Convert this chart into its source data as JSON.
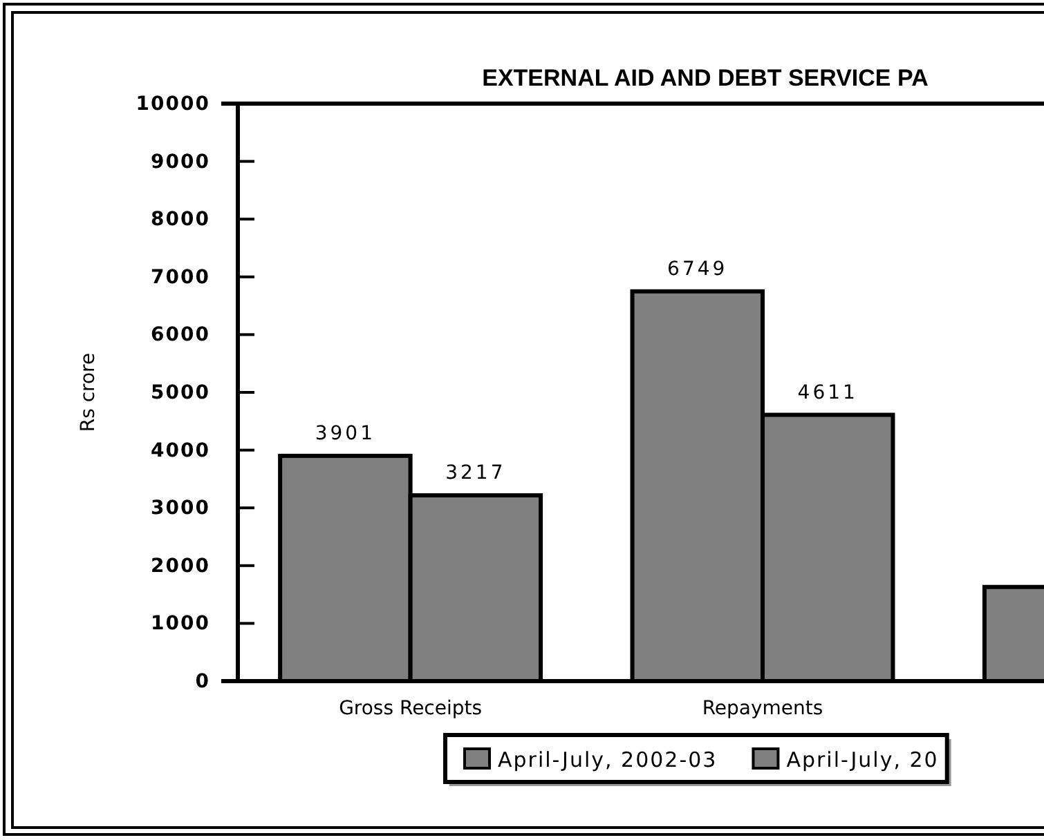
{
  "chart_data": {
    "type": "bar",
    "title": "EXTERNAL AID AND DEBT SERVICE PA",
    "ylabel": "Rs crore",
    "categories": [
      "Gross Receipts",
      "Repayments",
      null
    ],
    "series": [
      {
        "name": "April-July, 2002-03",
        "color": "#808080",
        "values": [
          3901,
          6749,
          1630
        ],
        "value_labels": [
          "3901",
          "6749",
          null
        ]
      },
      {
        "name": "April-July, 20",
        "color": "#808080",
        "values": [
          3217,
          4611,
          null
        ],
        "value_labels": [
          "3217",
          "4611",
          null
        ]
      }
    ],
    "ylim": [
      0,
      10000
    ],
    "yticks": [
      0,
      1000,
      2000,
      3000,
      4000,
      5000,
      6000,
      7000,
      8000,
      9000,
      10000
    ],
    "grid": false,
    "legend": "bottom"
  }
}
